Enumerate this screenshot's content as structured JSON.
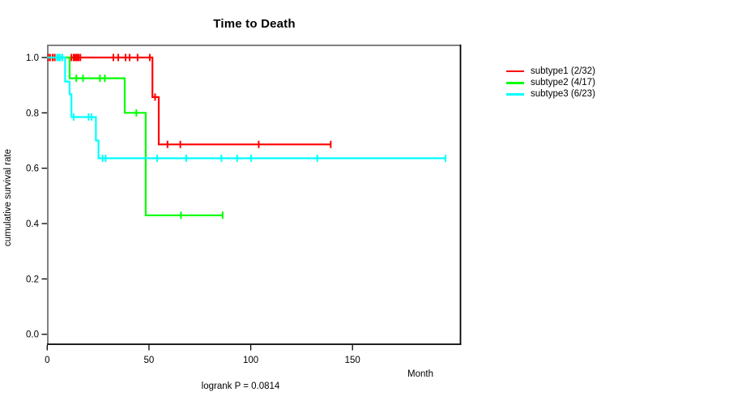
{
  "chart_data": {
    "type": "line",
    "variant": "kaplan-meier-step",
    "title": "Time to Death",
    "xlabel": "Month",
    "ylabel": "cumulative survival rate",
    "footer": "logrank P = 0.0814",
    "grid": false,
    "legend_position": "right-outside",
    "x_axis": {
      "tick_values": [
        0,
        50,
        100,
        150
      ],
      "tick_labels": [
        "0",
        "50",
        "100",
        "150"
      ],
      "range_months": [
        0,
        203
      ]
    },
    "y_axis": {
      "tick_values": [
        0.0,
        0.2,
        0.4,
        0.6,
        0.8,
        1.0
      ],
      "tick_labels": [
        "0.0",
        "0.2",
        "0.4",
        "0.6",
        "0.8",
        "1.0"
      ],
      "range": [
        0,
        1
      ]
    },
    "frame_colors": {
      "top_left": "#808080",
      "bottom_right": "#000000"
    },
    "series": [
      {
        "name": "subtype1 (2/32)",
        "color": "#FF0000",
        "steps": [
          [
            0,
            1.0
          ],
          [
            51.7,
            0.857
          ],
          [
            54.8,
            0.686
          ]
        ],
        "end_month": 139.3,
        "censors": [
          [
            0.5,
            1.0
          ],
          [
            1.4,
            1.0
          ],
          [
            2.7,
            1.0
          ],
          [
            3.7,
            1.0
          ],
          [
            11.9,
            1.0
          ],
          [
            13.0,
            1.0
          ],
          [
            13.8,
            1.0
          ],
          [
            14.6,
            1.0
          ],
          [
            15.4,
            1.0
          ],
          [
            16.3,
            1.0
          ],
          [
            32.5,
            1.0
          ],
          [
            34.9,
            1.0
          ],
          [
            38.5,
            1.0
          ],
          [
            40.5,
            1.0
          ],
          [
            44.4,
            1.0
          ],
          [
            50.4,
            1.0
          ],
          [
            53.0,
            0.857
          ],
          [
            59.1,
            0.686
          ],
          [
            65.4,
            0.686
          ],
          [
            103.9,
            0.686
          ],
          [
            139.3,
            0.686
          ]
        ]
      },
      {
        "name": "subtype2 (4/17)",
        "color": "#00FF00",
        "steps": [
          [
            0,
            1.0
          ],
          [
            11.0,
            0.925
          ],
          [
            38.1,
            0.8
          ],
          [
            48.4,
            0.43
          ]
        ],
        "end_month": 86.2,
        "censors": [
          [
            14.3,
            0.925
          ],
          [
            17.6,
            0.925
          ],
          [
            25.9,
            0.925
          ],
          [
            28.3,
            0.925
          ],
          [
            43.8,
            0.8
          ],
          [
            65.7,
            0.43
          ],
          [
            86.2,
            0.43
          ]
        ]
      },
      {
        "name": "subtype3 (6/23)",
        "color": "#00FFFF",
        "steps": [
          [
            0,
            1.0
          ],
          [
            8.8,
            0.913
          ],
          [
            11.0,
            0.867
          ],
          [
            11.9,
            0.785
          ],
          [
            23.9,
            0.7
          ],
          [
            25.2,
            0.636
          ]
        ],
        "end_month": 195.7,
        "censors": [
          [
            4.8,
            1.0
          ],
          [
            5.6,
            1.0
          ],
          [
            6.4,
            1.0
          ],
          [
            7.4,
            1.0
          ],
          [
            13.0,
            0.785
          ],
          [
            20.3,
            0.785
          ],
          [
            21.8,
            0.785
          ],
          [
            27.2,
            0.636
          ],
          [
            28.7,
            0.636
          ],
          [
            54.0,
            0.636
          ],
          [
            68.3,
            0.636
          ],
          [
            85.6,
            0.636
          ],
          [
            93.3,
            0.636
          ],
          [
            100.2,
            0.636
          ],
          [
            132.7,
            0.636
          ],
          [
            195.7,
            0.636
          ]
        ]
      }
    ]
  }
}
